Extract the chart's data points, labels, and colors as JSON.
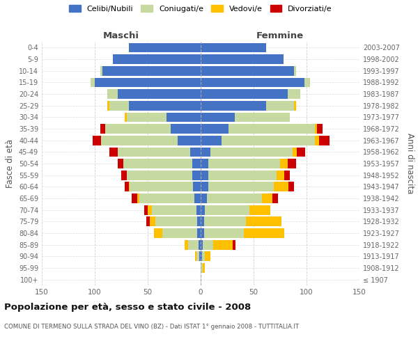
{
  "age_groups": [
    "100+",
    "95-99",
    "90-94",
    "85-89",
    "80-84",
    "75-79",
    "70-74",
    "65-69",
    "60-64",
    "55-59",
    "50-54",
    "45-49",
    "40-44",
    "35-39",
    "30-34",
    "25-29",
    "20-24",
    "15-19",
    "10-14",
    "5-9",
    "0-4"
  ],
  "birth_years": [
    "≤ 1907",
    "1908-1912",
    "1913-1917",
    "1918-1922",
    "1923-1927",
    "1928-1932",
    "1933-1937",
    "1938-1942",
    "1943-1947",
    "1948-1952",
    "1953-1957",
    "1958-1962",
    "1963-1967",
    "1968-1972",
    "1973-1977",
    "1978-1982",
    "1983-1987",
    "1988-1992",
    "1993-1997",
    "1998-2002",
    "2003-2007"
  ],
  "colors": {
    "celibi": "#4472c4",
    "coniugati": "#c5d9a0",
    "vedovi": "#ffc000",
    "divorziati": "#cc0000"
  },
  "maschi": {
    "celibi": [
      0,
      0,
      1,
      2,
      3,
      3,
      4,
      6,
      7,
      8,
      8,
      10,
      22,
      28,
      32,
      68,
      78,
      100,
      93,
      83,
      68
    ],
    "coniugati": [
      0,
      0,
      3,
      10,
      33,
      40,
      42,
      52,
      60,
      62,
      65,
      68,
      72,
      62,
      38,
      18,
      10,
      4,
      2,
      0,
      0
    ],
    "vedovi": [
      0,
      0,
      1,
      3,
      8,
      5,
      4,
      2,
      1,
      0,
      0,
      0,
      0,
      0,
      2,
      2,
      0,
      0,
      0,
      0,
      0
    ],
    "divorziati": [
      0,
      0,
      0,
      0,
      0,
      3,
      3,
      5,
      4,
      5,
      5,
      8,
      8,
      5,
      0,
      0,
      0,
      0,
      0,
      0,
      0
    ]
  },
  "femmine": {
    "celibi": [
      0,
      0,
      1,
      2,
      3,
      3,
      4,
      6,
      7,
      7,
      7,
      9,
      20,
      26,
      32,
      62,
      82,
      98,
      88,
      78,
      62
    ],
    "coniugati": [
      0,
      2,
      3,
      10,
      38,
      40,
      42,
      52,
      62,
      65,
      68,
      78,
      88,
      82,
      52,
      26,
      12,
      5,
      2,
      0,
      0
    ],
    "vedovi": [
      0,
      2,
      5,
      18,
      38,
      33,
      20,
      10,
      14,
      7,
      7,
      4,
      4,
      2,
      0,
      2,
      0,
      0,
      0,
      0,
      0
    ],
    "divorziati": [
      0,
      0,
      0,
      3,
      0,
      0,
      0,
      5,
      5,
      5,
      8,
      8,
      10,
      5,
      0,
      0,
      0,
      0,
      0,
      0,
      0
    ]
  },
  "xlim": 150,
  "title": "Popolazione per età, sesso e stato civile - 2008",
  "subtitle": "COMUNE DI TERMENO SULLA STRADA DEL VINO (BZ) - Dati ISTAT 1° gennaio 2008 - TUTTITALIA.IT",
  "ylabel_left": "Fasce di età",
  "ylabel_right": "Anni di nascita",
  "xlabel_maschi": "Maschi",
  "xlabel_femmine": "Femmine",
  "legend_labels": [
    "Celibi/Nubili",
    "Coniugati/e",
    "Vedovi/e",
    "Divorziati/e"
  ],
  "bg_color": "#ffffff",
  "grid_color": "#cccccc"
}
